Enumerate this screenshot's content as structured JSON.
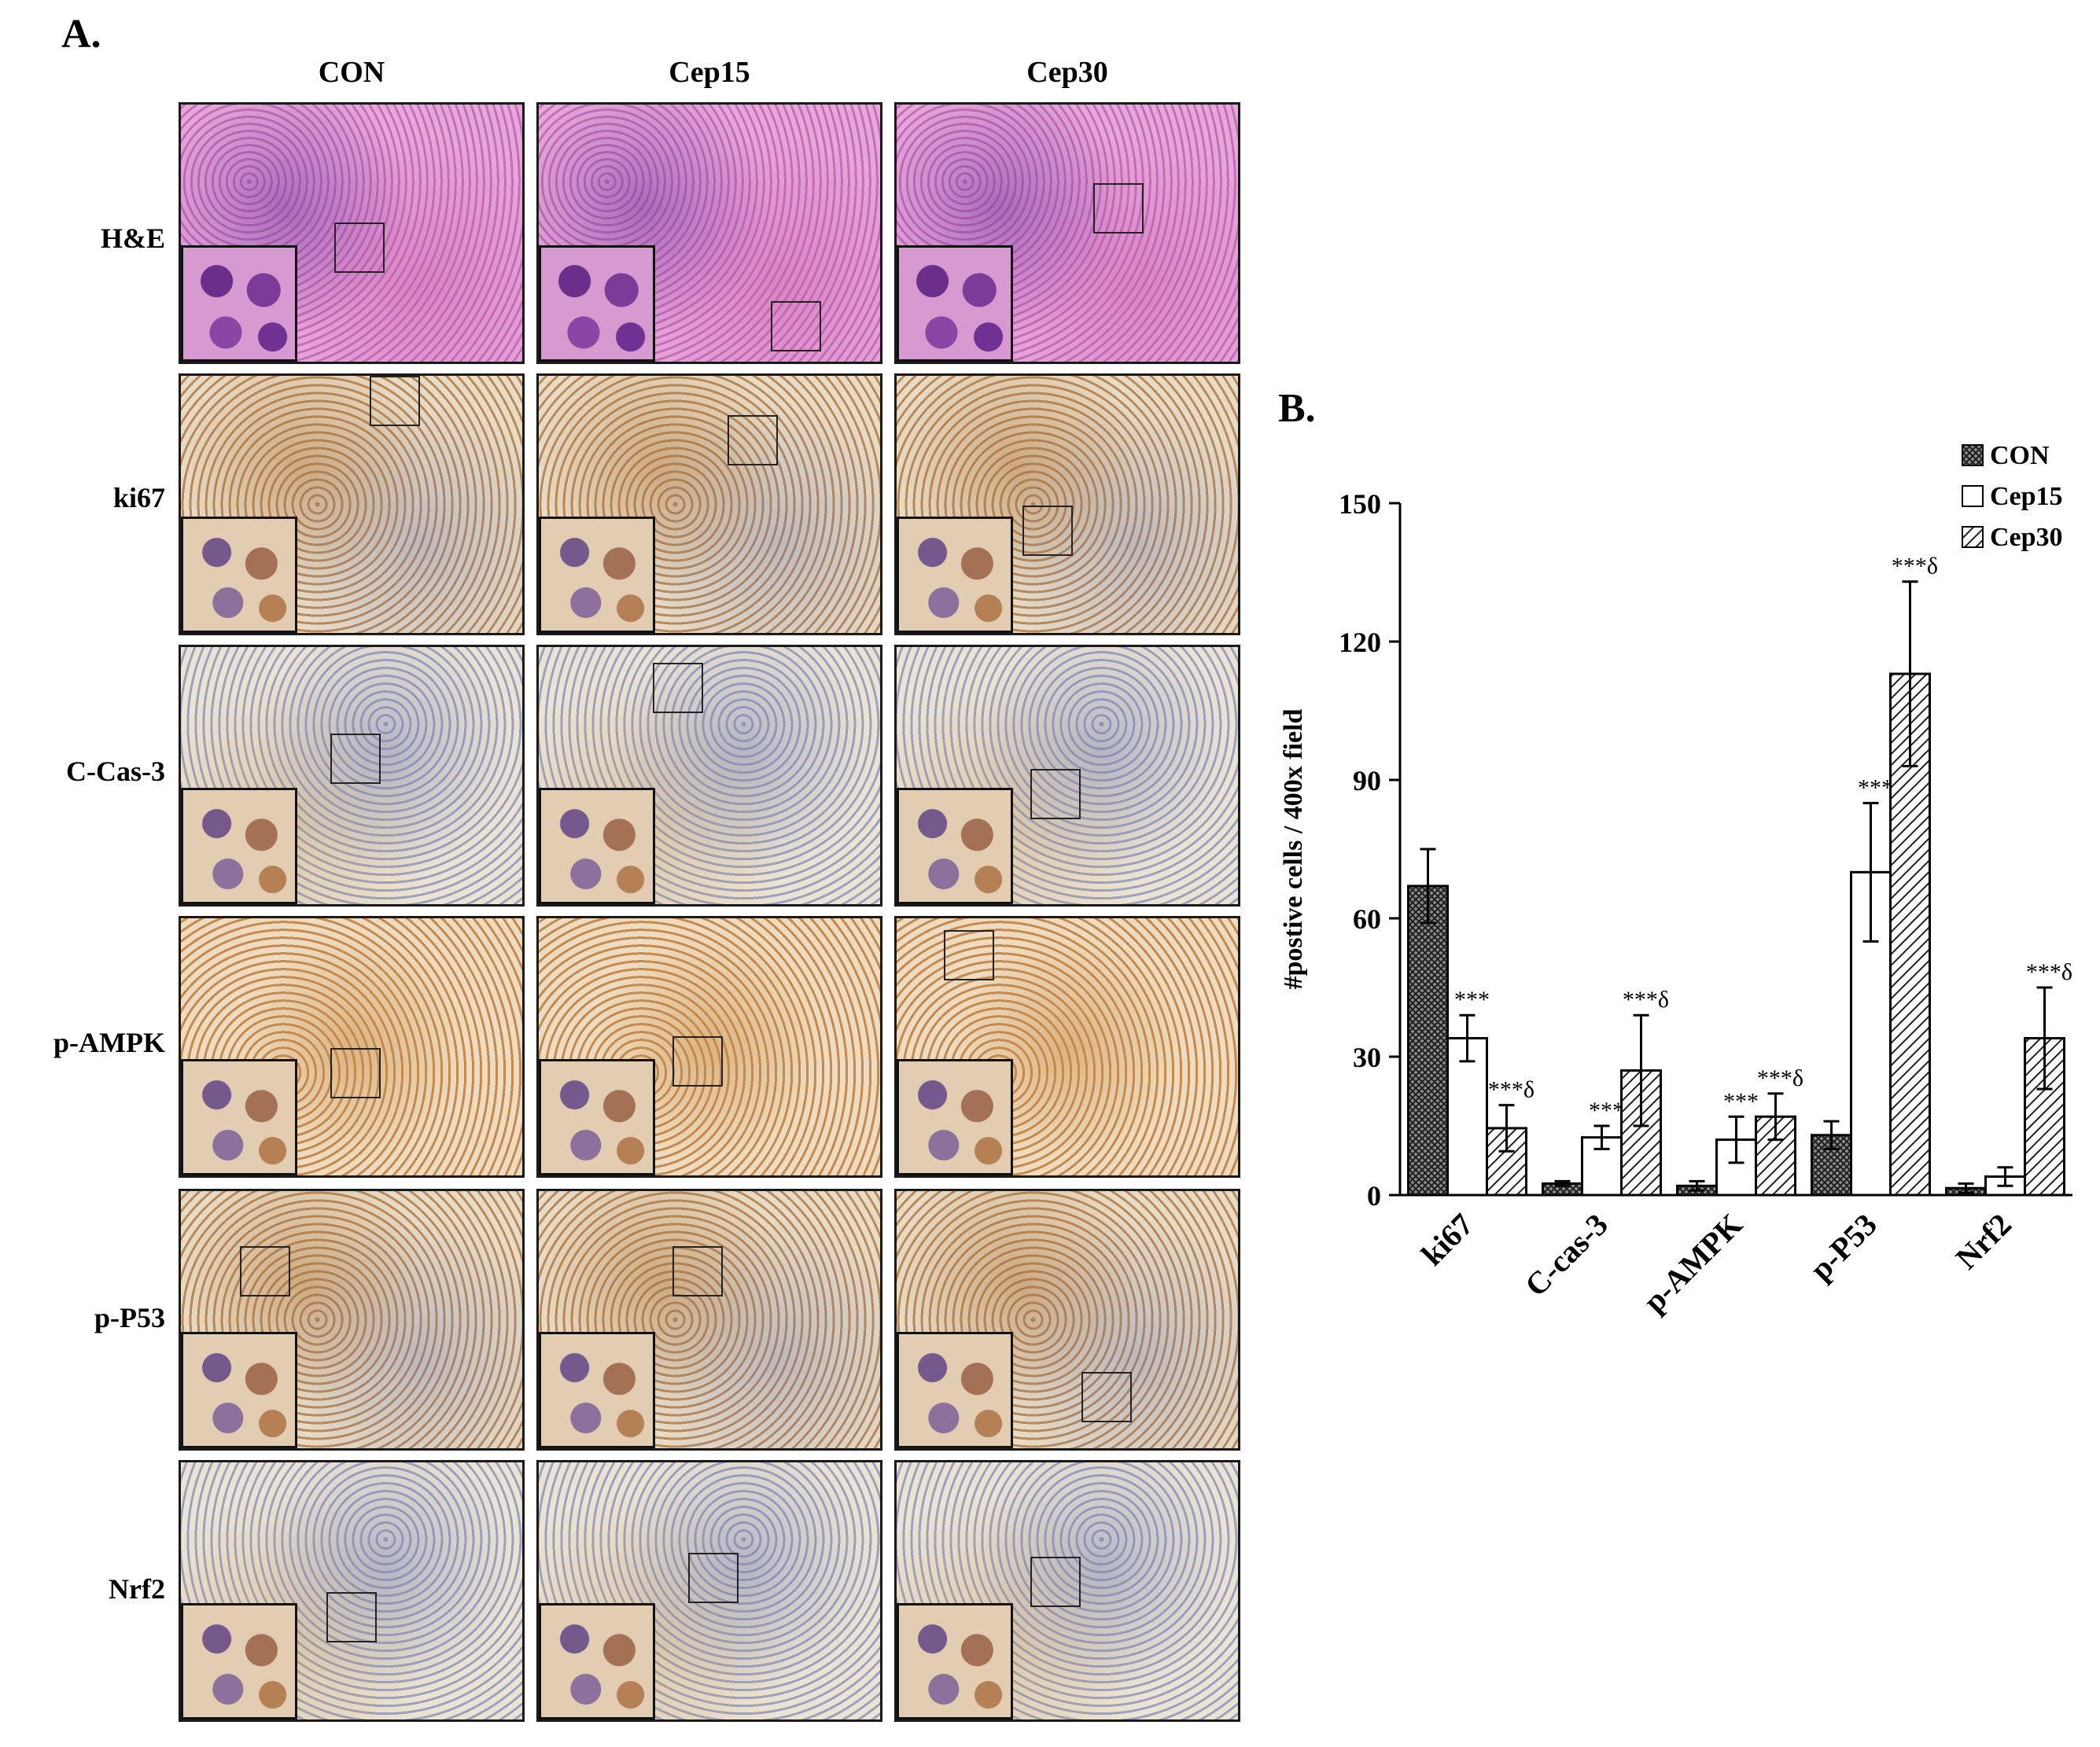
{
  "panel_a": {
    "label": "A.",
    "columns": [
      "CON",
      "Cep15",
      "Cep30"
    ],
    "rows": [
      "H&E",
      "ki67",
      "C-Cas-3",
      "p-AMPK",
      "p-P53",
      "Nrf2"
    ]
  },
  "panel_b": {
    "label": "B."
  },
  "chart_data": {
    "type": "bar",
    "categories": [
      "ki67",
      "C-cas-3",
      "p-AMPK",
      "p-P53",
      "Nrf2"
    ],
    "ylabel": "#postive cells / 400x field",
    "xlabel": "",
    "ylim": [
      0,
      150
    ],
    "yticks": [
      "0",
      "30",
      "60",
      "90",
      "120",
      "150"
    ],
    "legend_position": "top-right",
    "series": [
      {
        "name": "CON",
        "pattern": "crosshatch",
        "values": [
          67,
          2.5,
          2,
          13,
          1.5
        ],
        "errors": [
          8,
          0.5,
          1,
          3,
          1
        ],
        "annotations": [
          "",
          "",
          "",
          "",
          ""
        ]
      },
      {
        "name": "Cep15",
        "pattern": "white",
        "values": [
          34,
          12.5,
          12,
          70,
          4
        ],
        "errors": [
          5,
          2.5,
          5,
          15,
          2
        ],
        "annotations": [
          "***",
          "***",
          "***",
          "***",
          ""
        ]
      },
      {
        "name": "Cep30",
        "pattern": "diagonal",
        "values": [
          14.5,
          27,
          17,
          113,
          34
        ],
        "errors": [
          5,
          12,
          5,
          20,
          11
        ],
        "annotations": [
          "***δ",
          "***δ",
          "***δ",
          "***δ",
          "***δ"
        ]
      }
    ]
  }
}
